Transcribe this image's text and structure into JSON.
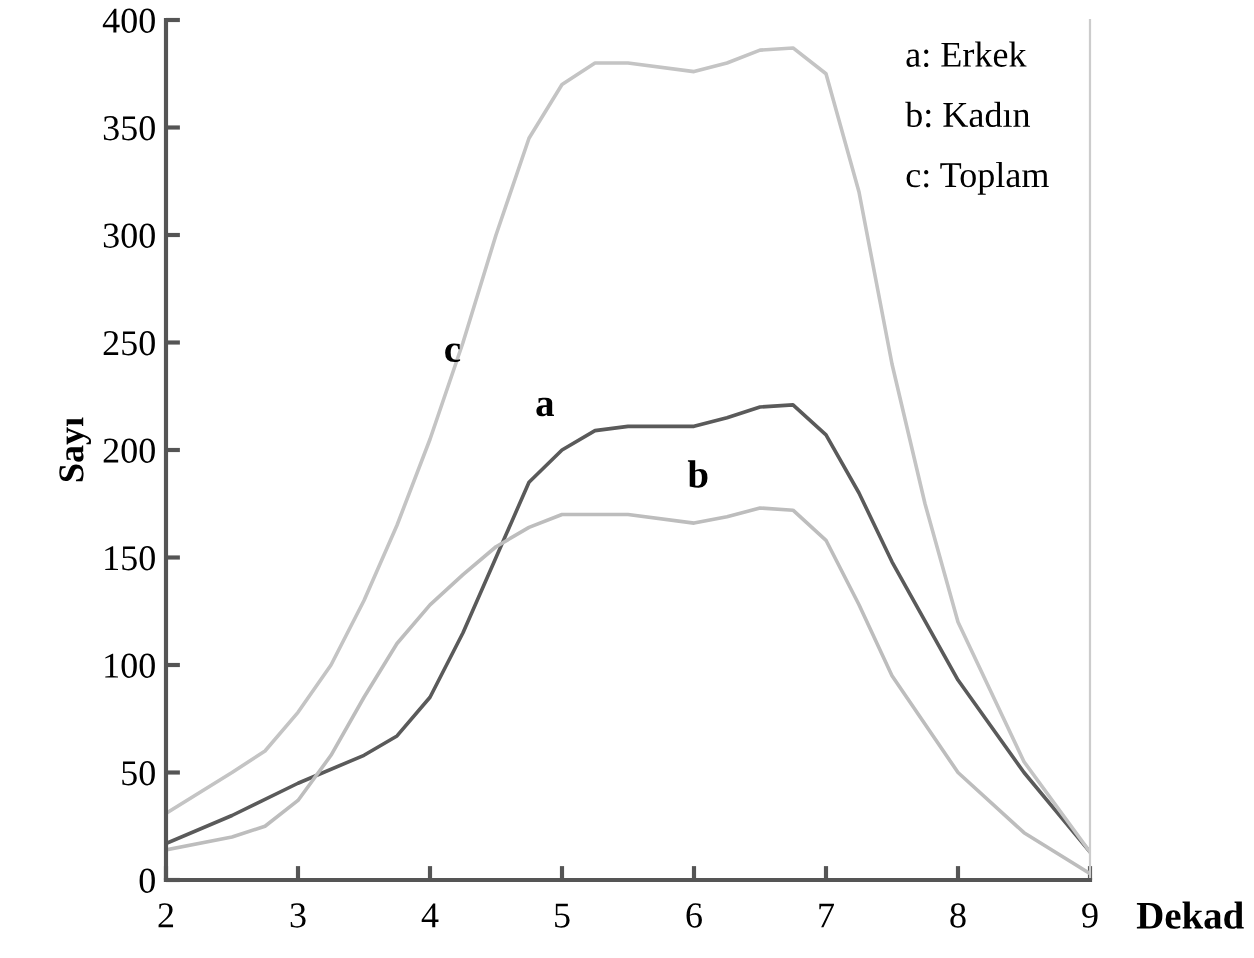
{
  "chart_data": {
    "type": "line",
    "xlabel": "Dekad",
    "ylabel": "Sayı",
    "series": [
      {
        "name": "a",
        "color": "#5a5a5a",
        "x": [
          2,
          2.5,
          3,
          3.5,
          3.75,
          4,
          4.25,
          4.5,
          4.75,
          5,
          5.25,
          5.5,
          6,
          6.25,
          6.5,
          6.75,
          7,
          7.25,
          7.5,
          8,
          8.5,
          9
        ],
        "values": [
          17,
          30,
          45,
          58,
          67,
          85,
          115,
          150,
          185,
          200,
          209,
          211,
          211,
          215,
          220,
          221,
          207,
          180,
          148,
          93,
          50,
          13
        ]
      },
      {
        "name": "b",
        "color": "#bdbdbd",
        "x": [
          2,
          2.5,
          2.75,
          3,
          3.25,
          3.5,
          3.75,
          4,
          4.25,
          4.5,
          4.75,
          5,
          5.5,
          6,
          6.25,
          6.5,
          6.75,
          7,
          7.25,
          7.5,
          8,
          8.5,
          9
        ],
        "values": [
          14,
          20,
          25,
          37,
          58,
          85,
          110,
          128,
          142,
          155,
          164,
          170,
          170,
          166,
          169,
          173,
          172,
          158,
          128,
          95,
          50,
          22,
          3
        ]
      },
      {
        "name": "c",
        "color": "#c4c4c4",
        "x": [
          2,
          2.5,
          2.75,
          3,
          3.25,
          3.5,
          3.75,
          4,
          4.25,
          4.5,
          4.75,
          5,
          5.25,
          5.5,
          6,
          6.25,
          6.5,
          6.75,
          7,
          7.25,
          7.5,
          7.75,
          8,
          8.5,
          9
        ],
        "values": [
          31,
          50,
          60,
          78,
          100,
          130,
          165,
          205,
          250,
          300,
          345,
          370,
          380,
          380,
          376,
          380,
          386,
          387,
          375,
          320,
          240,
          175,
          120,
          55,
          13
        ]
      }
    ],
    "xlim": [
      2,
      9
    ],
    "ylim": [
      0,
      400
    ],
    "xticks": [
      2,
      3,
      4,
      5,
      6,
      7,
      8,
      9
    ],
    "yticks": [
      0,
      50,
      100,
      150,
      200,
      250,
      300,
      350,
      400
    ],
    "grid": false,
    "legend": false,
    "marker": "none",
    "line_style": "solid",
    "annotations": [
      "a: Erkek",
      "b: Kadın",
      "c: Toplam"
    ]
  }
}
